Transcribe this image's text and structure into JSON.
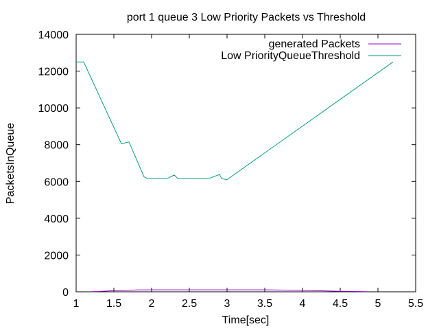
{
  "chart_data": {
    "type": "line",
    "title": "port 1 queue 3 Low Priority Packets vs Threshold",
    "xlabel": "Time[sec]",
    "ylabel": "PacketsInQueue",
    "xlim": [
      1,
      5.5
    ],
    "ylim": [
      0,
      14000
    ],
    "x_ticks": [
      1,
      1.5,
      2,
      2.5,
      3,
      3.5,
      4,
      4.5,
      5,
      5.5
    ],
    "x_tick_labels": [
      "1",
      "1.5",
      "2",
      "2.5",
      "3",
      "3.5",
      "4",
      "4.5",
      "5",
      "5.5"
    ],
    "y_ticks": [
      0,
      2000,
      4000,
      6000,
      8000,
      10000,
      12000,
      14000
    ],
    "y_tick_labels": [
      "0",
      "2000",
      "4000",
      "6000",
      "8000",
      "10000",
      "12000",
      "14000"
    ],
    "grid": false,
    "legend_position": "top-right",
    "series": [
      {
        "name": "generated Packets",
        "color": "#9400d3",
        "x": [
          1.2,
          1.3,
          1.4,
          1.5,
          1.6,
          1.7,
          1.8,
          2.0,
          2.5,
          3.0,
          3.5,
          3.6,
          4.0,
          4.2,
          4.5,
          4.85
        ],
        "y": [
          10,
          20,
          40,
          60,
          70,
          80,
          100,
          110,
          110,
          110,
          110,
          100,
          80,
          60,
          30,
          10
        ]
      },
      {
        "name": "Low PriorityQueueThreshold",
        "color": "#009e73",
        "x": [
          1.0,
          1.1,
          1.6,
          1.7,
          1.9,
          1.95,
          2.0,
          2.2,
          2.3,
          2.35,
          2.5,
          2.75,
          2.9,
          2.93,
          3.0,
          5.2
        ],
        "y": [
          12500,
          12500,
          8050,
          8150,
          6250,
          6150,
          6150,
          6150,
          6350,
          6150,
          6150,
          6150,
          6380,
          6150,
          6100,
          12500
        ]
      }
    ]
  }
}
